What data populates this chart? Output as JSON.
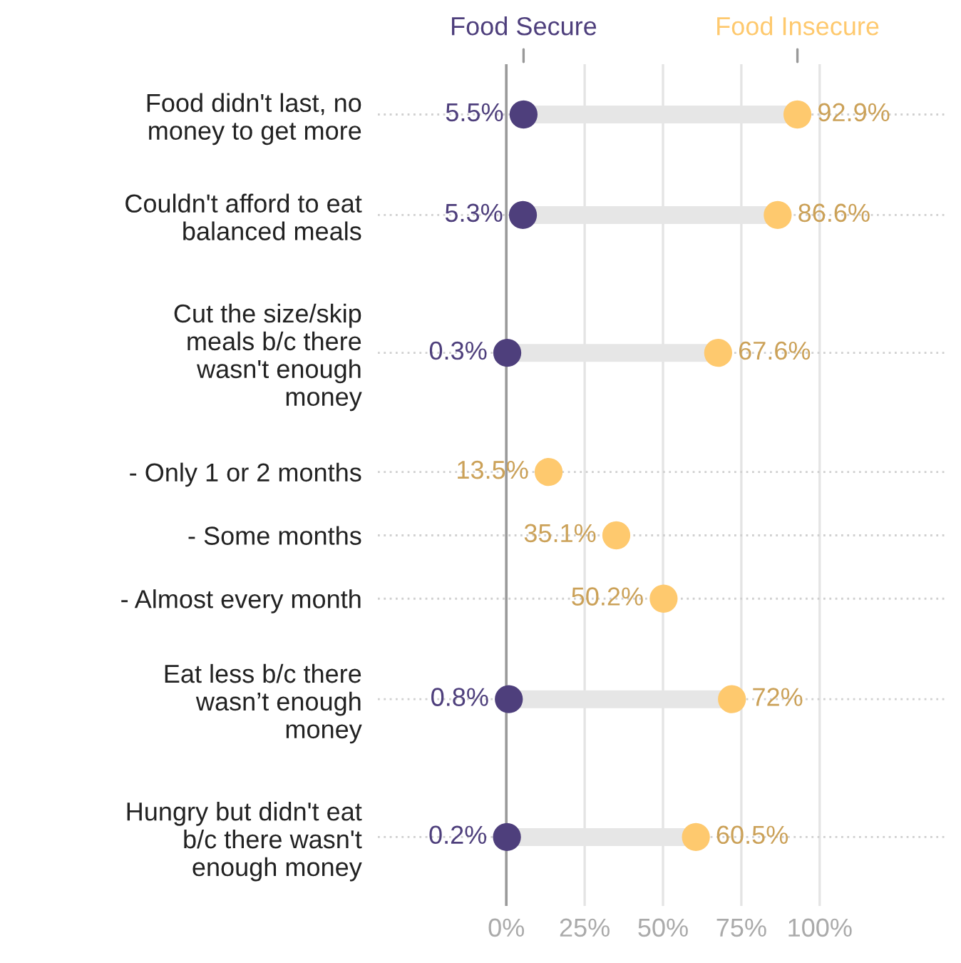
{
  "chart_data": {
    "type": "scatter",
    "orientation": "horizontal",
    "categories": [
      "Food didn't last, no\nmoney to get more",
      "Couldn't afford to eat\nbalanced meals",
      "Cut the size/skip\nmeals b/c there\nwasn't enough\nmoney",
      "- Only 1 or 2 months",
      "- Some months",
      "- Almost every month",
      "Eat less b/c there\nwasn’t enough\nmoney",
      "Hungry but didn't eat\nb/c there wasn't\nenough money"
    ],
    "series": [
      {
        "name": "Food Secure",
        "color": "#4e3f7c",
        "values": [
          5.5,
          5.3,
          0.3,
          null,
          null,
          null,
          0.8,
          0.2
        ]
      },
      {
        "name": "Food Insecure",
        "color": "#fec96e",
        "values": [
          92.9,
          86.6,
          67.6,
          13.5,
          35.1,
          50.2,
          72,
          60.5
        ]
      }
    ],
    "value_labels": [
      [
        "5.5%",
        "5.3%",
        "0.3%",
        null,
        null,
        null,
        "0.8%",
        "0.2%"
      ],
      [
        "92.9%",
        "86.6%",
        "67.6%",
        "13.5%",
        "35.1%",
        "50.2%",
        "72%",
        "60.5%"
      ]
    ],
    "xlim": [
      -41,
      141
    ],
    "xticks": [
      {
        "value": 0,
        "label": "0%"
      },
      {
        "value": 25,
        "label": "25%"
      },
      {
        "value": 50,
        "label": "50%"
      },
      {
        "value": 75,
        "label": "75%"
      },
      {
        "value": 100,
        "label": "100%"
      }
    ],
    "ref_lines": [
      {
        "axis": "x",
        "value": 0,
        "color": "#9a9a9a"
      }
    ],
    "grid": true,
    "legend": "top",
    "marker": "circle"
  }
}
